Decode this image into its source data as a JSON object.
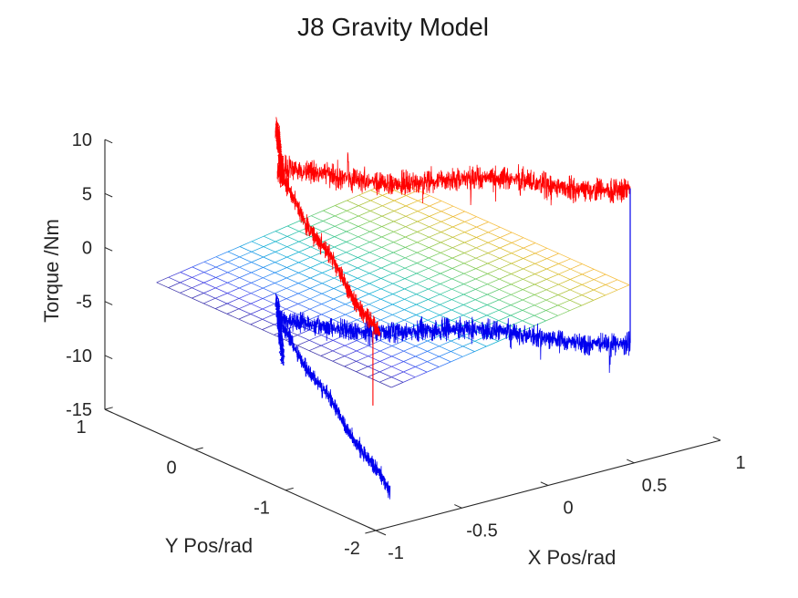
{
  "figure": {
    "background": "#ffffff",
    "text_color": "#262626",
    "title_color": "#1a1a1a"
  },
  "chart_data": {
    "type": "line",
    "subtype": "3d-noisy-traces-with-mesh-surface-plane",
    "title": "J8 Gravity Model",
    "xlabel": "X Pos/rad",
    "ylabel": "Y Pos/rad",
    "zlabel": "Torque /Nm",
    "xlim": [
      -1,
      1
    ],
    "ylim": [
      -2,
      1
    ],
    "zlim": [
      -15,
      10
    ],
    "xticks": {
      "values": [
        -1,
        -0.5,
        0,
        0.5,
        1
      ],
      "labels": [
        "-1",
        "-0.5",
        "0",
        "0.5",
        "1"
      ]
    },
    "yticks": {
      "values": [
        1,
        0,
        -1,
        -2
      ],
      "labels": [
        "1",
        "0",
        "-1",
        "-2"
      ]
    },
    "zticks": {
      "values": [
        10,
        5,
        0,
        -5,
        -10,
        -15
      ],
      "labels": [
        "10",
        "5",
        "0",
        "-5",
        "-10",
        "-15"
      ]
    },
    "grid": false,
    "box": false,
    "legend": null,
    "projection": {
      "origin": [
        412,
        582
      ],
      "base": [
        -1,
        -2,
        -15
      ],
      "ux": [
        189,
        -49.5
      ],
      "uy": [
        -99,
        -44.3
      ],
      "uz": [
        0,
        -11.84
      ]
    },
    "surface": {
      "kind": "mesh-plane",
      "x_range": [
        -0.7,
        0.68
      ],
      "y_range": [
        -1.6,
        1.0
      ],
      "grid_divisions": 20,
      "z_plane": {
        "intercept": -2.6,
        "x_slope": 2.7,
        "y_slope": 0
      },
      "z_corner_values": {
        "left_x_min": -4.5,
        "right_x_max": -0.8
      },
      "colormap": "parula",
      "color_range": [
        0.04,
        0.83
      ],
      "colormap_stops": [
        [
          0.0,
          [
            53,
            42,
            135
          ]
        ],
        [
          0.125,
          [
            71,
            68,
            235
          ]
        ],
        [
          0.25,
          [
            46,
            135,
            247
          ]
        ],
        [
          0.375,
          [
            18,
            177,
            214
          ]
        ],
        [
          0.5,
          [
            55,
            200,
            151
          ]
        ],
        [
          0.625,
          [
            129,
            204,
            89
          ]
        ],
        [
          0.75,
          [
            220,
            189,
            41
          ]
        ],
        [
          0.82,
          [
            245,
            185,
            61
          ]
        ],
        [
          0.875,
          [
            252,
            208,
            48
          ]
        ],
        [
          1.0,
          [
            249,
            251,
            21
          ]
        ]
      ],
      "line_width": 0.75
    },
    "series": [
      {
        "name": "blue_noisy_trace",
        "color": "#0000ee",
        "mean_torque_band_nm": -10.4,
        "segments": [
          {
            "kind": "start-column",
            "from": [
              0,
              1,
              -9.0
            ],
            "to": [
              0.015,
              0.97,
              -14.5
            ],
            "noise": 1.0,
            "points": 320,
            "jitter": 0.025
          },
          {
            "kind": "lower-band",
            "from": [
              0,
              1,
              -11.2
            ],
            "to": [
              1,
              -1,
              -9.6
            ],
            "noise": 1.35,
            "points": 1900,
            "wobble": [
              0.4,
              10,
              2.1
            ],
            "spikes": {
              "p": 0.004,
              "mag": 2.0
            }
          },
          {
            "kind": "descending-branch",
            "from": [
              0,
              1,
              -11.0
            ],
            "to": [
              0,
              -0.25,
              -22.2
            ],
            "noise": 1.0,
            "points": 1000,
            "wobble": [
              0.3,
              15,
              0.9
            ]
          },
          {
            "kind": "end-connector",
            "from": [
              1,
              -1,
              4.6
            ],
            "to": [
              1,
              -1,
              -9.7
            ],
            "noise": 0.03,
            "points": 12,
            "width": 1.2,
            "late": true
          }
        ]
      },
      {
        "name": "red_noisy_trace",
        "color": "#ff0000",
        "mean_torque_band_nm": 3.6,
        "segments": [
          {
            "kind": "start-column",
            "from": [
              0,
              1,
              6.9
            ],
            "to": [
              0.015,
              0.97,
              2.2
            ],
            "noise": 1.2,
            "points": 350,
            "jitter": 0.025
          },
          {
            "kind": "upper-band",
            "from": [
              0,
              1,
              2.6
            ],
            "to": [
              1,
              -1,
              4.7
            ],
            "noise": 1.5,
            "points": 1900,
            "wobble": [
              0.45,
              11,
              1.2
            ],
            "spikes": {
              "p": 0.004,
              "mag": 2.4
            }
          },
          {
            "kind": "descending-branch",
            "from": [
              0,
              1,
              2.6
            ],
            "to": [
              0,
              -0.14,
              -8.3
            ],
            "noise": 1.1,
            "points": 1000,
            "wobble": [
              0.35,
              14,
              0.4
            ],
            "spikes": {
              "p": 0.003,
              "mag": 1.8
            }
          },
          {
            "kind": "drop-spike",
            "from": [
              0,
              -0.06,
              -8.0
            ],
            "to": [
              0,
              -0.06,
              -14.85
            ],
            "noise": 0.04,
            "points": 12,
            "width": 1.1
          }
        ]
      }
    ],
    "axis_style": {
      "color": "#262626",
      "tick_length": 9,
      "axis_overshoot": 12
    }
  }
}
